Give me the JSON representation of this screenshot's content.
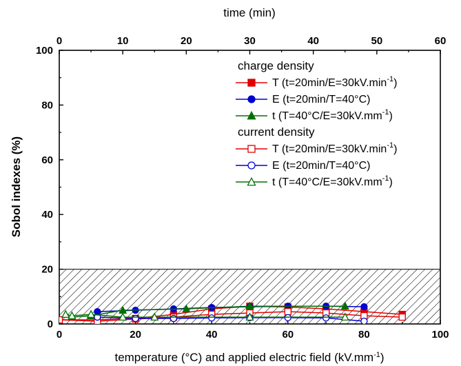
{
  "chart_data": {
    "type": "line",
    "xlabel": "temperature (°C) and applied electric field (kV.mm",
    "xlabel_sup": "-1",
    "xlabel_tail": ")",
    "x2label": "time (min)",
    "ylabel": "Sobol indexes (%)",
    "xlim": [
      0,
      100
    ],
    "x2lim": [
      0,
      60
    ],
    "ylim": [
      0,
      100
    ],
    "x_ticks": [
      0,
      20,
      40,
      60,
      80,
      100
    ],
    "x2_ticks": [
      0,
      10,
      20,
      30,
      40,
      50,
      60
    ],
    "y_ticks": [
      0,
      20,
      40,
      60,
      80,
      100
    ],
    "hatched_band": [
      0,
      20
    ],
    "grid": false,
    "legend_position": "top-right",
    "legend_groups": [
      {
        "heading": "charge density",
        "series": [
          0,
          1,
          2
        ]
      },
      {
        "heading": "current density",
        "series": [
          3,
          4,
          5
        ]
      }
    ],
    "series": [
      {
        "name": "T (t=20min/E=30kV.min",
        "name_sup": "-1",
        "name_tail": ")",
        "color": "#e00000",
        "marker": "square",
        "filled": true,
        "axis": "bottom",
        "x": [
          0,
          10,
          20,
          30,
          40,
          50,
          60,
          70,
          80,
          90
        ],
        "y": [
          1.5,
          1.5,
          2.0,
          3.5,
          5.5,
          6.5,
          6.2,
          5.5,
          4.5,
          3.5
        ]
      },
      {
        "name": "E (t=20min/T=40°C)",
        "name_sup": "",
        "name_tail": "",
        "color": "#0000d0",
        "marker": "circle",
        "filled": true,
        "axis": "bottom",
        "x": [
          10,
          20,
          30,
          40,
          50,
          60,
          70,
          80
        ],
        "y": [
          4.5,
          5.0,
          5.5,
          6.0,
          6.3,
          6.5,
          6.5,
          6.3
        ]
      },
      {
        "name": "t (T=40°C/E=30kV.mm",
        "name_sup": "-1",
        "name_tail": ")",
        "color": "#007000",
        "marker": "triangle",
        "filled": true,
        "axis": "top",
        "x": [
          2,
          5,
          10,
          20,
          30,
          45
        ],
        "y": [
          2.5,
          3.0,
          5.0,
          5.5,
          6.5,
          6.5
        ]
      },
      {
        "name": "T (t=20min/E=30kV.min",
        "name_sup": "-1",
        "name_tail": ")",
        "color": "#e00000",
        "marker": "square",
        "filled": false,
        "axis": "bottom",
        "x": [
          0,
          10,
          20,
          30,
          40,
          50,
          60,
          70,
          80,
          90
        ],
        "y": [
          1.5,
          1.0,
          1.8,
          2.5,
          3.5,
          4.0,
          4.5,
          4.0,
          3.0,
          2.5
        ]
      },
      {
        "name": "E (t=20min/T=40°C)",
        "name_sup": "",
        "name_tail": "",
        "color": "#0000d0",
        "marker": "circle",
        "filled": false,
        "axis": "bottom",
        "x": [
          10,
          20,
          30,
          40,
          50,
          60,
          70,
          80
        ],
        "y": [
          2.5,
          2.0,
          2.0,
          2.2,
          2.3,
          2.3,
          2.2,
          1.0
        ]
      },
      {
        "name": "t (T=40°C/E=30kV.mm",
        "name_sup": "-1",
        "name_tail": ")",
        "color": "#007000",
        "marker": "triangle",
        "filled": false,
        "axis": "top",
        "x": [
          1,
          2,
          5,
          10,
          15,
          30,
          45
        ],
        "y": [
          3.5,
          3.0,
          3.5,
          2.5,
          2.5,
          2.5,
          2.5
        ]
      }
    ]
  }
}
